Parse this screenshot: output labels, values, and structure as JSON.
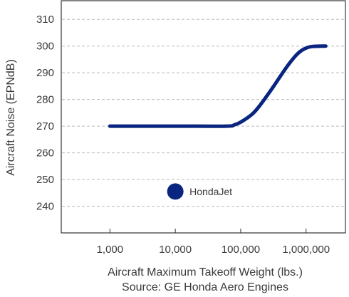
{
  "chart_data": {
    "type": "line",
    "xscale": "log",
    "ylabel": "Aircraft Noise (EPNdB)",
    "xlabel": "Aircraft Maximum Takeoff Weight (lbs.)",
    "caption": "Source: GE Honda Aero Engines",
    "ylim": [
      230,
      317
    ],
    "xlim": [
      180,
      4000000
    ],
    "yticks": [
      240,
      250,
      260,
      270,
      280,
      290,
      300,
      310
    ],
    "ytick_labels": [
      "240",
      "250",
      "260",
      "270",
      "280",
      "290",
      "300",
      "310"
    ],
    "xticks": [
      1000,
      10000,
      100000,
      1000000
    ],
    "xtick_labels": [
      "1,000",
      "10,000",
      "100,000",
      "1,000,000"
    ],
    "grid": "horizontal dashed",
    "series": [
      {
        "color": "#0a2580",
        "x": [
          1000,
          10000,
          60000,
          80000,
          100000,
          150000,
          200000,
          300000,
          500000,
          700000,
          900000,
          1200000,
          2000000
        ],
        "y": [
          270,
          270,
          270,
          270.5,
          271.5,
          274.5,
          278,
          284,
          292,
          296.5,
          298.7,
          299.8,
          300
        ]
      }
    ],
    "points": [
      {
        "label": "HondaJet",
        "x": 10000,
        "y": 245.5,
        "color": "#0a2580"
      }
    ]
  }
}
